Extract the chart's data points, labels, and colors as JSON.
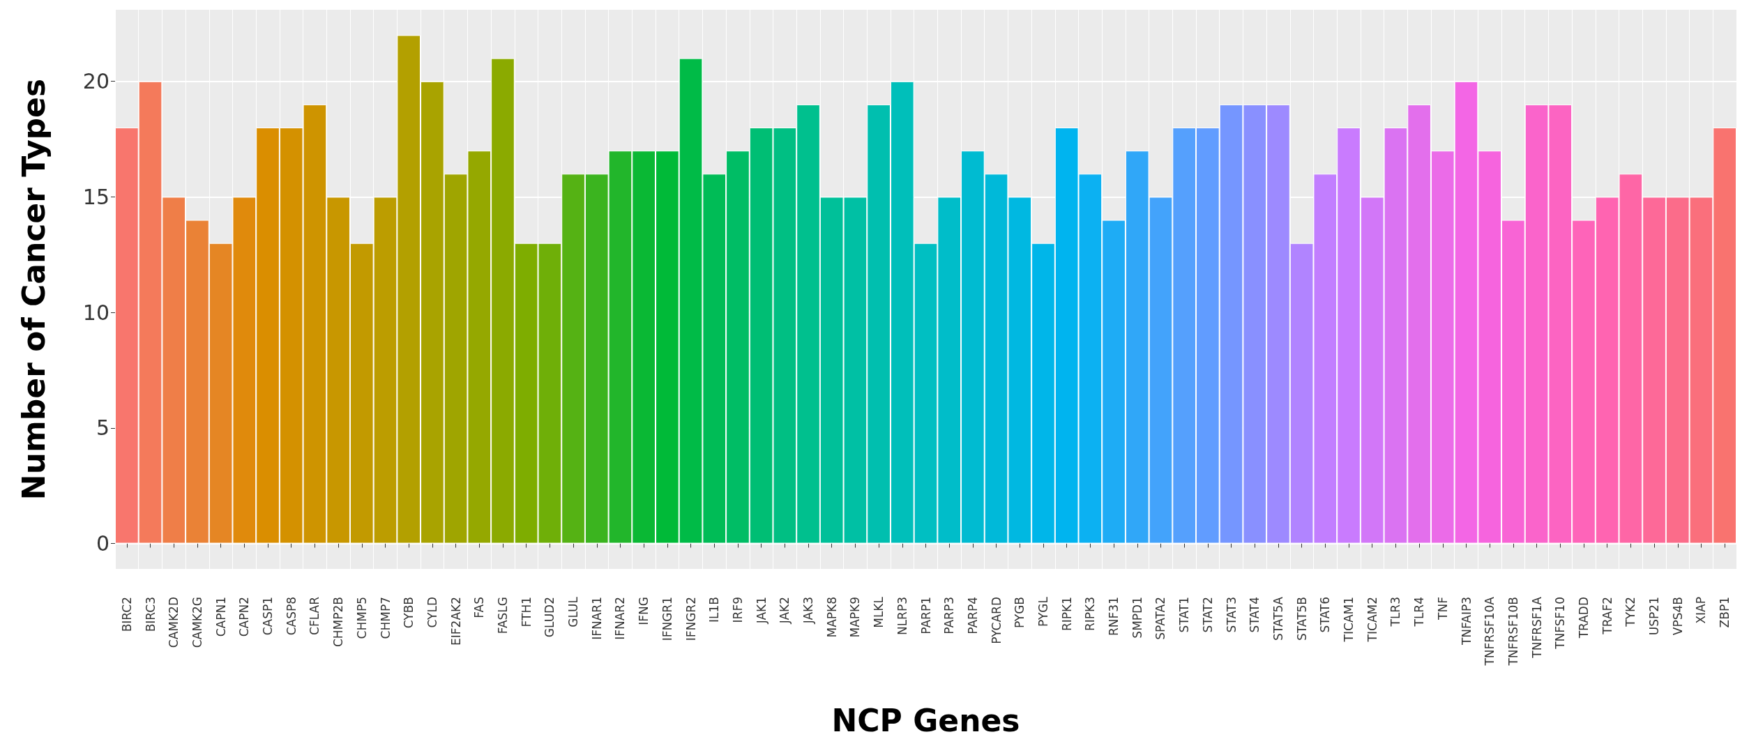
{
  "chart_data": {
    "type": "bar",
    "xlabel": "NCP Genes",
    "ylabel": "Number of Cancer Types",
    "categories": [
      "BIRC2",
      "BIRC3",
      "CAMK2D",
      "CAMK2G",
      "CAPN1",
      "CAPN2",
      "CASP1",
      "CASP8",
      "CFLAR",
      "CHMP2B",
      "CHMP5",
      "CHMP7",
      "CYBB",
      "CYLD",
      "EIF2AK2",
      "FAS",
      "FASLG",
      "FTH1",
      "GLUD2",
      "GLUL",
      "IFNAR1",
      "IFNAR2",
      "IFNG",
      "IFNGR1",
      "IFNGR2",
      "IL1B",
      "IRF9",
      "JAK1",
      "JAK2",
      "JAK3",
      "MAPK8",
      "MAPK9",
      "MLKL",
      "NLRP3",
      "PARP1",
      "PARP3",
      "PARP4",
      "PYCARD",
      "PYGB",
      "PYGL",
      "RIPK1",
      "RIPK3",
      "RNF31",
      "SMPD1",
      "SPATA2",
      "STAT1",
      "STAT2",
      "STAT3",
      "STAT4",
      "STAT5A",
      "STAT5B",
      "STAT6",
      "TICAM1",
      "TICAM2",
      "TLR3",
      "TLR4",
      "TNF",
      "TNFAIP3",
      "TNFRSF10A",
      "TNFRSF10B",
      "TNFRSF1A",
      "TNFSF10",
      "TRADD",
      "TRAF2",
      "TYK2",
      "USP21",
      "VPS4B",
      "XIAP",
      "ZBP1"
    ],
    "values": [
      18,
      20,
      15,
      14,
      13,
      15,
      18,
      18,
      19,
      15,
      13,
      15,
      22,
      20,
      16,
      17,
      21,
      13,
      13,
      16,
      16,
      17,
      17,
      17,
      21,
      16,
      17,
      18,
      18,
      19,
      15,
      15,
      19,
      20,
      13,
      15,
      17,
      16,
      15,
      13,
      18,
      16,
      14,
      17,
      15,
      18,
      18,
      19,
      19,
      19,
      13,
      16,
      18,
      15,
      18,
      19,
      17,
      20,
      17,
      14,
      19,
      19,
      14,
      15,
      16,
      15,
      15,
      15,
      18
    ],
    "colors": [
      "#f8766d",
      "#f47a5b",
      "#ef7e48",
      "#ea8236",
      "#e58624",
      "#e08a0c",
      "#da8e00",
      "#d49100",
      "#ce9400",
      "#c89700",
      "#c29a00",
      "#bc9d00",
      "#b3a000",
      "#a9a300",
      "#9fa500",
      "#95a800",
      "#8baa00",
      "#7ead00",
      "#6faf08",
      "#55b214",
      "#3bb41f",
      "#22b62b",
      "#0ab834",
      "#00ba38",
      "#00bb47",
      "#00bc56",
      "#00bd65",
      "#00be74",
      "#00bf83",
      "#00c08e",
      "#00c099",
      "#00c0a4",
      "#00bfaf",
      "#00bfba",
      "#00bfc2",
      "#00bdc9",
      "#00bbd1",
      "#00b9d9",
      "#00b8e1",
      "#00b6e9",
      "#00b4ef",
      "#0cb1f2",
      "#1eacf5",
      "#30a7f8",
      "#43a3fb",
      "#55a0fd",
      "#619cff",
      "#7596ff",
      "#8990ff",
      "#9d8aff",
      "#b184ff",
      "#c27eff",
      "#c97bfe",
      "#d277f8",
      "#da73f2",
      "#e36fec",
      "#eb6be8",
      "#f366e5",
      "#f664de",
      "#f864d5",
      "#fa64cb",
      "#fc64c2",
      "#fe64b9",
      "#ff64b1",
      "#fe66a6",
      "#fd6998",
      "#fb6c8a",
      "#fa6f7c",
      "#f9736f"
    ],
    "ylim": [
      -1.1,
      23.1
    ],
    "yticks": [
      0,
      5,
      10,
      15,
      20
    ],
    "grid": true
  }
}
